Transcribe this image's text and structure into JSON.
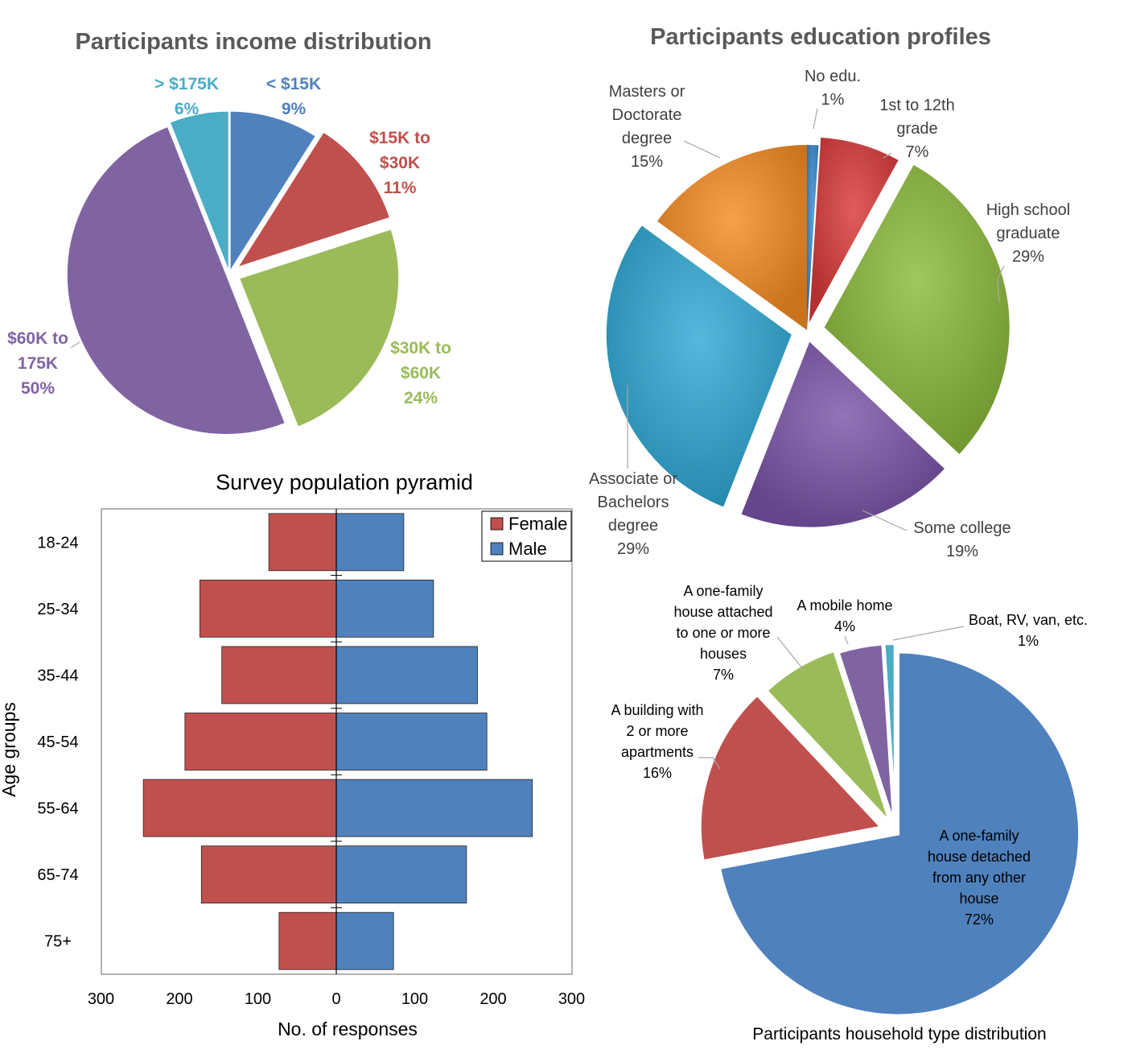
{
  "chart_data": [
    {
      "type": "pie",
      "title": "Participants income distribution",
      "slices": [
        {
          "label_lines": [
            "< $15K"
          ],
          "value": 9,
          "pct": "9%",
          "color": "#4F81BD"
        },
        {
          "label_lines": [
            "$15K to",
            "$30K"
          ],
          "value": 11,
          "pct": "11%",
          "color": "#C0504D"
        },
        {
          "label_lines": [
            "$30K to",
            "$60K"
          ],
          "value": 24,
          "pct": "24%",
          "color": "#9BBB59"
        },
        {
          "label_lines": [
            "$60K to",
            "175K"
          ],
          "value": 50,
          "pct": "50%",
          "color": "#8064A2"
        },
        {
          "label_lines": [
            "> $175K"
          ],
          "value": 6,
          "pct": "6%",
          "color": "#4BACC6"
        }
      ]
    },
    {
      "type": "pie",
      "title": "Participants education profiles",
      "slices": [
        {
          "label_lines": [
            "No edu."
          ],
          "value": 1,
          "pct": "1%",
          "color": "#3A8BD2"
        },
        {
          "label_lines": [
            "1st to 12th",
            "grade"
          ],
          "value": 7,
          "pct": "7%",
          "color": "#D93A3A"
        },
        {
          "label_lines": [
            "High school",
            "graduate"
          ],
          "value": 29,
          "pct": "29%",
          "color": "#8CBB3C"
        },
        {
          "label_lines": [
            "Some college"
          ],
          "value": 19,
          "pct": "19%",
          "color": "#7B55A8"
        },
        {
          "label_lines": [
            "Associate or",
            "Bachelors",
            "degree"
          ],
          "value": 29,
          "pct": "29%",
          "color": "#2FA8D4"
        },
        {
          "label_lines": [
            "Masters or",
            "Doctorate",
            "degree"
          ],
          "value": 15,
          "pct": "15%",
          "color": "#F58C24"
        }
      ]
    },
    {
      "type": "bar",
      "orientation": "horizontal",
      "stacking": "diverging",
      "title": "Survey population pyramid",
      "xlabel": "No. of responses",
      "ylabel": "Age groups",
      "categories": [
        "18-24",
        "25-34",
        "35-44",
        "45-54",
        "55-64",
        "65-74",
        "75+"
      ],
      "series": [
        {
          "name": "Female",
          "values": [
            86,
            174,
            146,
            193,
            246,
            172,
            73
          ],
          "color": "#C0504D"
        },
        {
          "name": "Male",
          "values": [
            86,
            124,
            180,
            192,
            250,
            166,
            73
          ],
          "color": "#4F81BD"
        }
      ],
      "xlim": [
        -300,
        300
      ],
      "x_ticks": [
        300,
        200,
        100,
        0,
        100,
        200,
        300
      ],
      "legend_position": "top-right",
      "grid": false
    },
    {
      "type": "pie",
      "title": "Participants household type distribution",
      "slices": [
        {
          "label_lines": [
            "A one-family",
            "house detached",
            "from any other",
            "house"
          ],
          "value": 72,
          "pct": "72%",
          "color": "#4F81BD"
        },
        {
          "label_lines": [
            "A building with",
            "2 or more",
            "apartments"
          ],
          "value": 16,
          "pct": "16%",
          "color": "#C0504D"
        },
        {
          "label_lines": [
            "A one-family",
            "house attached",
            "to one or more",
            "houses"
          ],
          "value": 7,
          "pct": "7%",
          "color": "#9BBB59"
        },
        {
          "label_lines": [
            "A mobile home"
          ],
          "value": 4,
          "pct": "4%",
          "color": "#8064A2"
        },
        {
          "label_lines": [
            "Boat, RV, van, etc."
          ],
          "value": 1,
          "pct": "1%",
          "color": "#4BACC6"
        }
      ]
    }
  ]
}
